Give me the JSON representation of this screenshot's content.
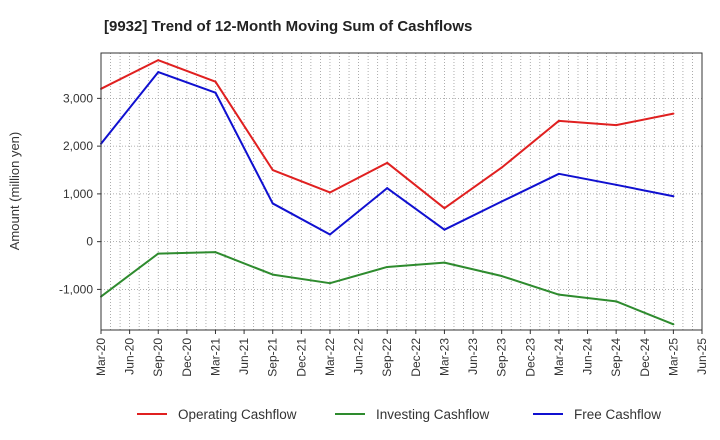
{
  "chart_data": {
    "type": "line",
    "title": "[9932]  Trend of 12-Month Moving Sum of Cashflows",
    "ylabel": "Amount (million yen)",
    "xlabel": "",
    "categories": [
      "Mar-20",
      "Jun-20",
      "Sep-20",
      "Dec-20",
      "Mar-21",
      "Jun-21",
      "Sep-21",
      "Dec-21",
      "Mar-22",
      "Jun-22",
      "Sep-22",
      "Dec-22",
      "Mar-23",
      "Jun-23",
      "Sep-23",
      "Dec-23",
      "Mar-24",
      "Jun-24",
      "Sep-24",
      "Dec-24",
      "Mar-25",
      "Jun-25"
    ],
    "ylim": [
      -1850,
      3950
    ],
    "yticks": [
      -1000,
      0,
      1000,
      2000,
      3000
    ],
    "ytick_labels": [
      "-1,000",
      "0",
      "1,000",
      "2,000",
      "3,000"
    ],
    "grid": true,
    "legend_position": "bottom",
    "series": [
      {
        "name": "Operating Cashflow",
        "color": "#e02020",
        "x": [
          "Mar-20",
          "Sep-20",
          "Mar-21",
          "Sep-21",
          "Mar-22",
          "Sep-22",
          "Mar-23",
          "Sep-23",
          "Mar-24",
          "Sep-24",
          "Mar-25"
        ],
        "values": [
          3200,
          3800,
          3350,
          1500,
          1030,
          1650,
          700,
          1550,
          2530,
          2440,
          2680
        ]
      },
      {
        "name": "Investing Cashflow",
        "color": "#2e8b2e",
        "x": [
          "Mar-20",
          "Sep-20",
          "Mar-21",
          "Sep-21",
          "Mar-22",
          "Sep-22",
          "Mar-23",
          "Sep-23",
          "Mar-24",
          "Sep-24",
          "Mar-25"
        ],
        "values": [
          -1150,
          -250,
          -220,
          -690,
          -870,
          -530,
          -440,
          -720,
          -1110,
          -1250,
          -1730
        ]
      },
      {
        "name": "Free Cashflow",
        "color": "#1010d0",
        "x": [
          "Mar-20",
          "Sep-20",
          "Mar-21",
          "Sep-21",
          "Mar-22",
          "Sep-22",
          "Mar-23",
          "Sep-23",
          "Mar-24",
          "Sep-24",
          "Mar-25"
        ],
        "values": [
          2050,
          3550,
          3120,
          800,
          150,
          1120,
          250,
          840,
          1420,
          1190,
          950
        ]
      }
    ]
  }
}
